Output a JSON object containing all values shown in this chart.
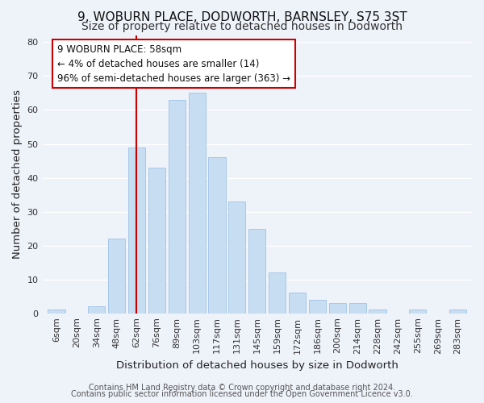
{
  "title": "9, WOBURN PLACE, DODWORTH, BARNSLEY, S75 3ST",
  "subtitle": "Size of property relative to detached houses in Dodworth",
  "xlabel": "Distribution of detached houses by size in Dodworth",
  "ylabel": "Number of detached properties",
  "bar_labels": [
    "6sqm",
    "20sqm",
    "34sqm",
    "48sqm",
    "62sqm",
    "76sqm",
    "89sqm",
    "103sqm",
    "117sqm",
    "131sqm",
    "145sqm",
    "159sqm",
    "172sqm",
    "186sqm",
    "200sqm",
    "214sqm",
    "228sqm",
    "242sqm",
    "255sqm",
    "269sqm",
    "283sqm"
  ],
  "bar_values": [
    1,
    0,
    2,
    22,
    49,
    43,
    63,
    65,
    46,
    33,
    25,
    12,
    6,
    4,
    3,
    3,
    1,
    0,
    1,
    0,
    1
  ],
  "bar_color": "#c7ddf2",
  "bar_edge_color": "#a8c8e8",
  "highlight_index": 4,
  "highlight_line_color": "#cc0000",
  "annotation_line1": "9 WOBURN PLACE: 58sqm",
  "annotation_line2": "← 4% of detached houses are smaller (14)",
  "annotation_line3": "96% of semi-detached houses are larger (363) →",
  "annotation_box_color": "#ffffff",
  "annotation_box_edge_color": "#cc0000",
  "ylim": [
    0,
    82
  ],
  "yticks": [
    0,
    10,
    20,
    30,
    40,
    50,
    60,
    70,
    80
  ],
  "footer_line1": "Contains HM Land Registry data © Crown copyright and database right 2024.",
  "footer_line2": "Contains public sector information licensed under the Open Government Licence v3.0.",
  "bg_color": "#eef2f9",
  "grid_color": "#ffffff",
  "title_fontsize": 11,
  "subtitle_fontsize": 10,
  "axis_label_fontsize": 9.5,
  "tick_fontsize": 8,
  "annotation_fontsize": 8.5,
  "footer_fontsize": 7
}
